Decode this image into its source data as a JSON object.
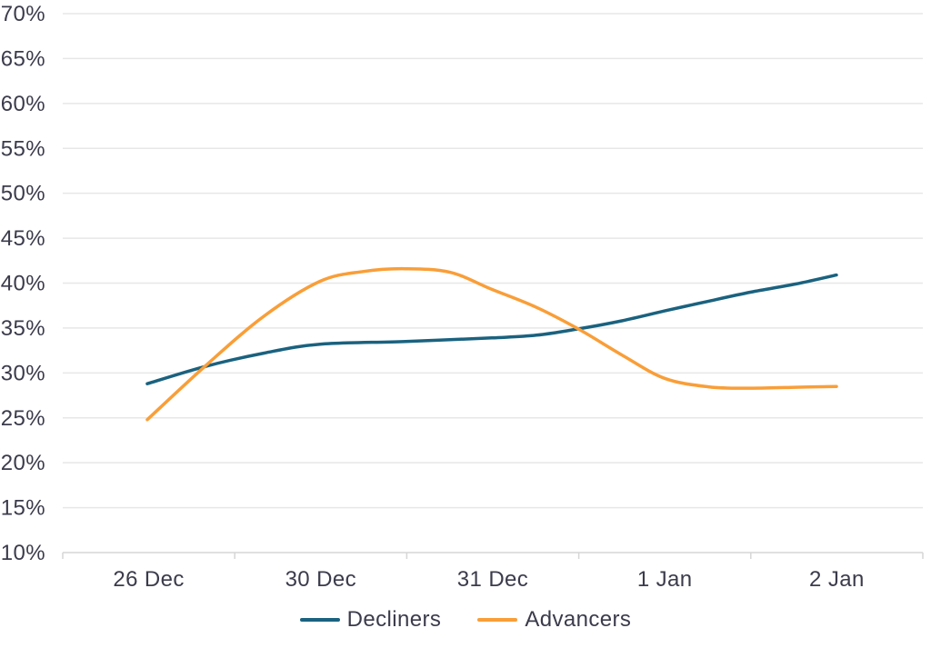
{
  "chart_data": {
    "type": "line",
    "title": "",
    "smoothing": "spline",
    "grid": true,
    "categories": [
      "26 Dec",
      "30 Dec",
      "31 Dec",
      "1 Jan",
      "2 Jan"
    ],
    "y_axis": {
      "min": 10,
      "max": 70,
      "step": 5,
      "unit": "%",
      "tick_labels": [
        "70%",
        "65%",
        "60%",
        "55%",
        "50%",
        "45%",
        "40%",
        "35%",
        "30%",
        "25%",
        "20%",
        "15%",
        "10%"
      ]
    },
    "legend": {
      "position": "bottom",
      "entries": [
        "Decliners",
        "Advancers"
      ]
    },
    "series": [
      {
        "name": "Decliners",
        "color": "#1a627f",
        "values": [
          28.8,
          33.2,
          33.9,
          36.9,
          40.9
        ],
        "curve": [
          [
            162,
            28.8
          ],
          [
            225,
            30.7
          ],
          [
            290,
            32.2
          ],
          [
            352,
            33.2
          ],
          [
            446,
            33.5
          ],
          [
            541,
            33.9
          ],
          [
            590,
            34.2
          ],
          [
            636,
            34.9
          ],
          [
            684,
            35.8
          ],
          [
            731,
            36.9
          ],
          [
            780,
            38.0
          ],
          [
            826,
            39.0
          ],
          [
            875,
            39.9
          ],
          [
            920,
            40.9
          ]
        ]
      },
      {
        "name": "Advancers",
        "color": "#f99e38",
        "values": [
          24.8,
          40.2,
          39.3,
          29.3,
          28.5
        ],
        "curve": [
          [
            162,
            24.8
          ],
          [
            225,
            30.7
          ],
          [
            290,
            36.3
          ],
          [
            352,
            40.2
          ],
          [
            400,
            41.3
          ],
          [
            446,
            41.6
          ],
          [
            495,
            41.2
          ],
          [
            541,
            39.3
          ],
          [
            590,
            37.3
          ],
          [
            636,
            34.9
          ],
          [
            684,
            32.0
          ],
          [
            731,
            29.4
          ],
          [
            780,
            28.45
          ],
          [
            826,
            28.3
          ],
          [
            875,
            28.4
          ],
          [
            920,
            28.5
          ]
        ]
      }
    ]
  },
  "colors": {
    "background": "#ffffff",
    "grid": "#e7e7e7",
    "axis": "#d6d6d6",
    "text": "#3b3b4c"
  }
}
